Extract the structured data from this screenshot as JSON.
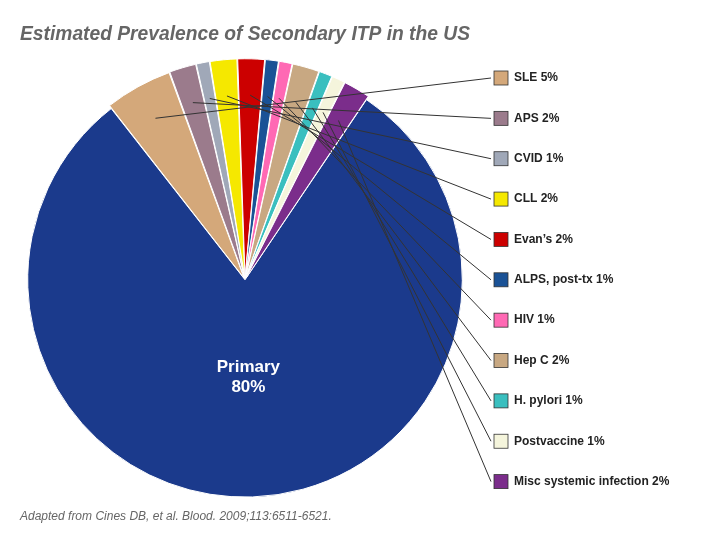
{
  "chart_data": {
    "type": "pie",
    "title": "Estimated Prevalence of Secondary ITP in the US",
    "categories": [
      "Primary\n80%",
      "SLE 5%",
      "APS 2%",
      "CVID 1%",
      "CLL 2%",
      "Evan’s 2%",
      "ALPS, post-tx 1%",
      "HIV 1%",
      "Hep C 2%",
      "H. pylori 1%",
      "Postvaccine 1%",
      "Misc systemic infection 2%"
    ],
    "values": [
      80,
      5,
      2,
      1,
      2,
      2,
      1,
      1,
      2,
      1,
      1,
      2
    ],
    "colors": [
      "#1B3A8C",
      "#D4A87A",
      "#9B7B8C",
      "#A0A8B8",
      "#F5E800",
      "#CC0000",
      "#1A5296",
      "#FF69B4",
      "#C8A882",
      "#3ABFBF",
      "#F5F5DC",
      "#7B2D8B"
    ],
    "annotations": [
      "Adapted from Cines DB, et al. Blood. 2009;113:6511-6521."
    ]
  }
}
